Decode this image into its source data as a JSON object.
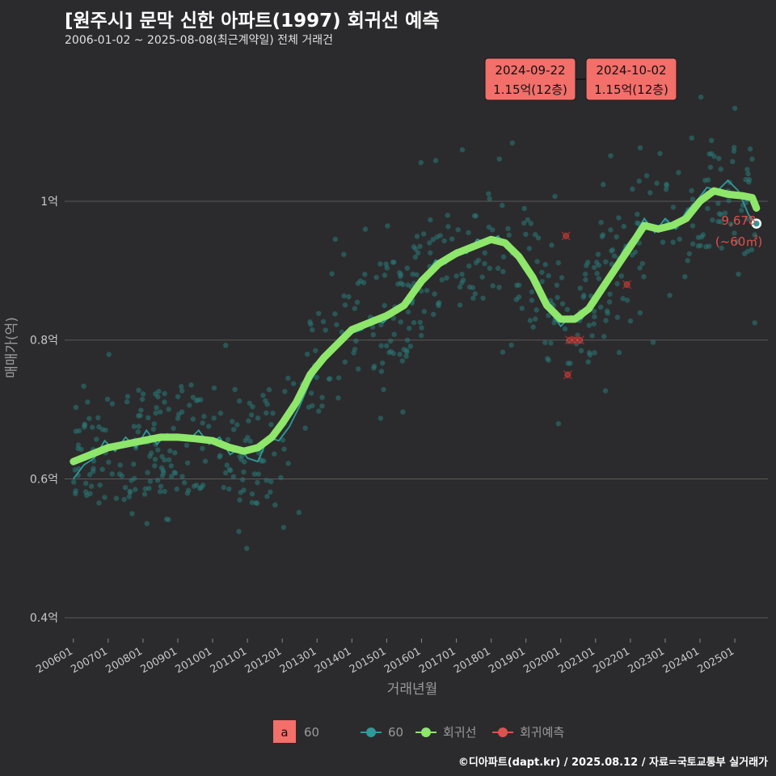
{
  "title": "[원주시] 문막 신한 아파트(1997) 회귀선 예측",
  "subtitle": "2006-01-02 ~ 2025-08-08(최근계약일) 전체 거래건",
  "caption": "©디아파트(dapt.kr) / 2025.08.12 / 자료=국토교통부 실거래가",
  "colors": {
    "background": "#2b2b2d",
    "grid": "#5a5a5a",
    "scatter": "#2a7a78",
    "monthly_line": "#2e9a9a",
    "regression": "#8ee66a",
    "prediction": "#d9534f",
    "label_box": "#f36f6a",
    "annotation_text": "#e0504c"
  },
  "chart_data": {
    "type": "scatter",
    "xlabel": "거래년월",
    "ylabel": "매매가(억)",
    "x_ticks": [
      "200601",
      "200701",
      "200801",
      "200901",
      "201001",
      "201101",
      "201201",
      "201301",
      "201401",
      "201501",
      "201601",
      "201701",
      "201801",
      "201901",
      "202001",
      "202101",
      "202201",
      "202301",
      "202401",
      "202501"
    ],
    "y_ticks": [
      {
        "value": 0.4,
        "label": "0.4억"
      },
      {
        "value": 0.6,
        "label": "0.6억"
      },
      {
        "value": 0.8,
        "label": "0.8억"
      },
      {
        "value": 1.0,
        "label": "1억"
      }
    ],
    "ylim": [
      0.37,
      1.22
    ],
    "xlim": [
      2005.75,
      2025.95
    ],
    "regression_line": [
      [
        2006.0,
        0.625
      ],
      [
        2006.5,
        0.635
      ],
      [
        2007.0,
        0.645
      ],
      [
        2007.5,
        0.65
      ],
      [
        2008.0,
        0.655
      ],
      [
        2008.5,
        0.66
      ],
      [
        2009.0,
        0.66
      ],
      [
        2009.5,
        0.658
      ],
      [
        2010.0,
        0.655
      ],
      [
        2010.5,
        0.645
      ],
      [
        2010.9,
        0.64
      ],
      [
        2011.3,
        0.645
      ],
      [
        2011.7,
        0.66
      ],
      [
        2012.0,
        0.68
      ],
      [
        2012.4,
        0.71
      ],
      [
        2012.8,
        0.75
      ],
      [
        2013.2,
        0.775
      ],
      [
        2013.6,
        0.795
      ],
      [
        2014.0,
        0.815
      ],
      [
        2014.5,
        0.825
      ],
      [
        2015.0,
        0.835
      ],
      [
        2015.5,
        0.85
      ],
      [
        2016.0,
        0.885
      ],
      [
        2016.5,
        0.91
      ],
      [
        2017.0,
        0.925
      ],
      [
        2017.5,
        0.935
      ],
      [
        2018.0,
        0.945
      ],
      [
        2018.4,
        0.94
      ],
      [
        2018.8,
        0.92
      ],
      [
        2019.2,
        0.89
      ],
      [
        2019.6,
        0.85
      ],
      [
        2020.0,
        0.83
      ],
      [
        2020.4,
        0.83
      ],
      [
        2020.8,
        0.845
      ],
      [
        2021.2,
        0.875
      ],
      [
        2021.6,
        0.905
      ],
      [
        2022.0,
        0.935
      ],
      [
        2022.4,
        0.965
      ],
      [
        2022.8,
        0.96
      ],
      [
        2023.2,
        0.965
      ],
      [
        2023.6,
        0.975
      ],
      [
        2024.0,
        1.0
      ],
      [
        2024.4,
        1.015
      ],
      [
        2024.8,
        1.01
      ],
      [
        2025.2,
        1.008
      ],
      [
        2025.5,
        1.005
      ],
      [
        2025.62,
        0.99
      ]
    ],
    "monthly_line": [
      [
        2006.0,
        0.6
      ],
      [
        2006.3,
        0.62
      ],
      [
        2006.6,
        0.63
      ],
      [
        2006.9,
        0.655
      ],
      [
        2007.2,
        0.64
      ],
      [
        2007.5,
        0.66
      ],
      [
        2007.8,
        0.645
      ],
      [
        2008.1,
        0.67
      ],
      [
        2008.4,
        0.65
      ],
      [
        2008.7,
        0.665
      ],
      [
        2009.0,
        0.66
      ],
      [
        2009.3,
        0.655
      ],
      [
        2009.6,
        0.67
      ],
      [
        2009.9,
        0.65
      ],
      [
        2010.2,
        0.66
      ],
      [
        2010.5,
        0.635
      ],
      [
        2010.8,
        0.645
      ],
      [
        2011.0,
        0.63
      ],
      [
        2011.3,
        0.625
      ],
      [
        2011.6,
        0.66
      ],
      [
        2011.9,
        0.655
      ],
      [
        2012.2,
        0.675
      ],
      [
        2012.5,
        0.705
      ],
      [
        2012.8,
        0.74
      ],
      [
        2013.1,
        0.765
      ],
      [
        2013.4,
        0.785
      ],
      [
        2013.7,
        0.8
      ],
      [
        2014.0,
        0.81
      ],
      [
        2014.3,
        0.815
      ],
      [
        2014.6,
        0.83
      ],
      [
        2014.9,
        0.825
      ],
      [
        2015.2,
        0.84
      ],
      [
        2015.5,
        0.855
      ],
      [
        2015.8,
        0.87
      ],
      [
        2016.1,
        0.89
      ],
      [
        2016.4,
        0.915
      ],
      [
        2016.7,
        0.91
      ],
      [
        2017.0,
        0.93
      ],
      [
        2017.3,
        0.925
      ],
      [
        2017.6,
        0.945
      ],
      [
        2017.9,
        0.94
      ],
      [
        2018.2,
        0.95
      ],
      [
        2018.5,
        0.93
      ],
      [
        2018.8,
        0.915
      ],
      [
        2019.1,
        0.9
      ],
      [
        2019.4,
        0.87
      ],
      [
        2019.7,
        0.84
      ],
      [
        2020.0,
        0.82
      ],
      [
        2020.3,
        0.835
      ],
      [
        2020.6,
        0.83
      ],
      [
        2020.9,
        0.85
      ],
      [
        2021.2,
        0.88
      ],
      [
        2021.5,
        0.9
      ],
      [
        2021.8,
        0.93
      ],
      [
        2022.1,
        0.95
      ],
      [
        2022.4,
        0.975
      ],
      [
        2022.7,
        0.955
      ],
      [
        2023.0,
        0.975
      ],
      [
        2023.3,
        0.96
      ],
      [
        2023.6,
        0.985
      ],
      [
        2023.9,
        1.0
      ],
      [
        2024.2,
        1.02
      ],
      [
        2024.5,
        1.015
      ],
      [
        2024.8,
        1.03
      ],
      [
        2025.1,
        1.015
      ],
      [
        2025.4,
        0.98
      ],
      [
        2025.62,
        0.968
      ]
    ],
    "predictions": [
      [
        2020.15,
        0.95
      ],
      [
        2020.25,
        0.8
      ],
      [
        2020.4,
        0.8
      ],
      [
        2020.55,
        0.8
      ],
      [
        2020.2,
        0.75
      ],
      [
        2021.9,
        0.88
      ]
    ],
    "last_point": {
      "x": 2025.62,
      "y": 0.9678,
      "value_label": "9,678",
      "area_label": "(~60㎡)"
    },
    "callouts": [
      {
        "date": "2024-09-22",
        "text": "1.15억(12층)"
      },
      {
        "date": "2024-10-02",
        "text": "1.15억(12층)"
      }
    ],
    "legend": {
      "key_letter": "a",
      "size_label": "60",
      "series_line": "60",
      "regression": "회귀선",
      "prediction": "회귀예측"
    }
  }
}
